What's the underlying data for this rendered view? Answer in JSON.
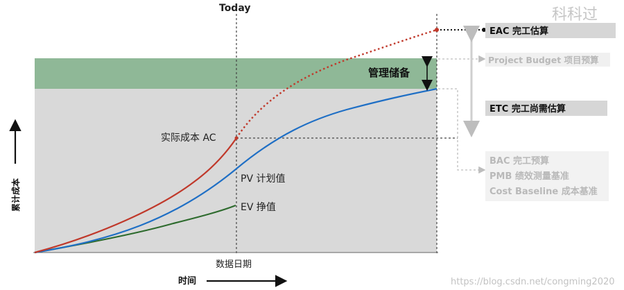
{
  "today_label": "Today",
  "watermark_top": "科科过",
  "watermark_bottom": "https://blog.csdn.net/congming2020",
  "y_axis_label": "累计成本",
  "x_axis_label": "时间",
  "data_date_label": "数据日期",
  "management_reserve_label": "管理储备",
  "curves": {
    "ac_label": "实际成本 AC",
    "pv_label": "PV 计划值",
    "ev_label": "EV 挣值"
  },
  "legend": {
    "eac": "EAC 完工估算",
    "project_budget": "Project Budget 项目预算",
    "etc": "ETC 完工尚需估算",
    "bac": "BAC 完工预算",
    "pmb": "PMB 绩效测量基准",
    "cost_baseline": "Cost Baseline 成本基准"
  },
  "colors": {
    "ac": "#c0392b",
    "pv": "#1f6fc5",
    "ev": "#2e6b2e",
    "reserve_band": "#8fb897",
    "baseline_area": "#d9d9d9",
    "legend_box": "#d6d6d6",
    "faded_text": "#b9b9b9"
  }
}
